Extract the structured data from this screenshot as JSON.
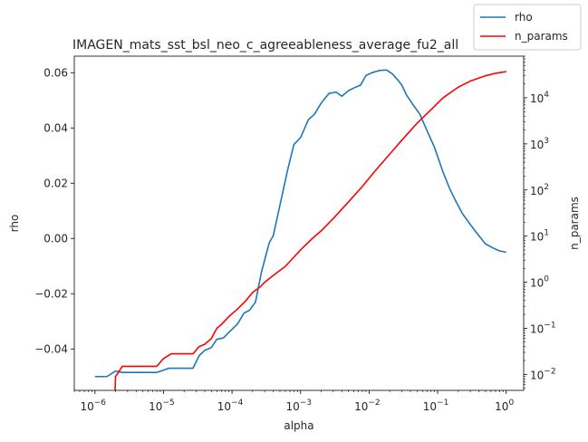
{
  "chart_data": {
    "type": "line",
    "title": "IMAGEN_mats_sst_bsl_neo_c_agreeableness_average_fu2_all",
    "xlabel": "alpha",
    "ylabel": "rho",
    "y2label": "n_params",
    "xscale": "log",
    "xlim": [
      5e-07,
      1.8
    ],
    "ylim": [
      -0.055,
      0.066
    ],
    "y2scale": "log",
    "y2lim": [
      0.0045,
      80000
    ],
    "x_ticks": [
      {
        "value": 1e-06,
        "base": "10",
        "exp": "−6"
      },
      {
        "value": 1e-05,
        "base": "10",
        "exp": "−5"
      },
      {
        "value": 0.0001,
        "base": "10",
        "exp": "−4"
      },
      {
        "value": 0.001,
        "base": "10",
        "exp": "−3"
      },
      {
        "value": 0.01,
        "base": "10",
        "exp": "−2"
      },
      {
        "value": 0.1,
        "base": "10",
        "exp": "−1"
      },
      {
        "value": 1,
        "base": "10",
        "exp": "0"
      }
    ],
    "y_ticks": [
      {
        "value": 0.06,
        "label": "0.06"
      },
      {
        "value": 0.04,
        "label": "0.04"
      },
      {
        "value": 0.02,
        "label": "0.02"
      },
      {
        "value": 0.0,
        "label": "0.00"
      },
      {
        "value": -0.02,
        "label": "−0.02"
      },
      {
        "value": -0.04,
        "label": "−0.04"
      }
    ],
    "y2_ticks": [
      {
        "value": 0.01,
        "base": "10",
        "exp": "−2"
      },
      {
        "value": 0.1,
        "base": "10",
        "exp": "−1"
      },
      {
        "value": 1,
        "base": "10",
        "exp": "0"
      },
      {
        "value": 10,
        "base": "10",
        "exp": "1"
      },
      {
        "value": 100,
        "base": "10",
        "exp": "2"
      },
      {
        "value": 1000,
        "base": "10",
        "exp": "3"
      },
      {
        "value": 10000,
        "base": "10",
        "exp": "4"
      }
    ],
    "legend": {
      "placement": "top-right"
    },
    "series": [
      {
        "name": "rho",
        "axis": "left",
        "color": "#1f77b4",
        "points": [
          [
            1e-06,
            -0.05
          ],
          [
            1.5e-06,
            -0.05
          ],
          [
            2e-06,
            -0.048
          ],
          [
            2.5e-06,
            -0.0485
          ],
          [
            3e-06,
            -0.0485
          ],
          [
            5e-06,
            -0.0485
          ],
          [
            8e-06,
            -0.0485
          ],
          [
            1.2e-05,
            -0.047
          ],
          [
            2e-05,
            -0.047
          ],
          [
            2.7e-05,
            -0.047
          ],
          [
            3.3e-05,
            -0.0425
          ],
          [
            4e-05,
            -0.0405
          ],
          [
            5e-05,
            -0.0395
          ],
          [
            6e-05,
            -0.0365
          ],
          [
            7.5e-05,
            -0.036
          ],
          [
            9e-05,
            -0.034
          ],
          [
            0.00012,
            -0.031
          ],
          [
            0.00015,
            -0.027
          ],
          [
            0.00018,
            -0.026
          ],
          [
            0.00022,
            -0.023
          ],
          [
            0.00027,
            -0.012
          ],
          [
            0.00035,
            -0.0015
          ],
          [
            0.0004,
            0.001
          ],
          [
            0.0005,
            0.012
          ],
          [
            0.00065,
            0.025
          ],
          [
            0.0008,
            0.034
          ],
          [
            0.001,
            0.0365
          ],
          [
            0.0013,
            0.043
          ],
          [
            0.0016,
            0.045
          ],
          [
            0.002,
            0.049
          ],
          [
            0.0026,
            0.0525
          ],
          [
            0.0033,
            0.053
          ],
          [
            0.004,
            0.0515
          ],
          [
            0.005,
            0.0535
          ],
          [
            0.006,
            0.0545
          ],
          [
            0.0075,
            0.0555
          ],
          [
            0.009,
            0.059
          ],
          [
            0.011,
            0.06
          ],
          [
            0.014,
            0.0608
          ],
          [
            0.018,
            0.061
          ],
          [
            0.022,
            0.0595
          ],
          [
            0.026,
            0.0575
          ],
          [
            0.03,
            0.0555
          ],
          [
            0.035,
            0.052
          ],
          [
            0.045,
            0.048
          ],
          [
            0.055,
            0.045
          ],
          [
            0.07,
            0.039
          ],
          [
            0.09,
            0.033
          ],
          [
            0.12,
            0.024
          ],
          [
            0.15,
            0.018
          ],
          [
            0.18,
            0.014
          ],
          [
            0.23,
            0.009
          ],
          [
            0.3,
            0.005
          ],
          [
            0.4,
            0.001
          ],
          [
            0.5,
            -0.002
          ],
          [
            0.65,
            -0.0035
          ],
          [
            0.8,
            -0.0045
          ],
          [
            1,
            -0.005
          ]
        ]
      },
      {
        "name": "n_params",
        "axis": "right",
        "color": "#ff0000",
        "points": [
          [
            1.95e-06,
            0.003
          ],
          [
            2e-06,
            0.009
          ],
          [
            2.2e-06,
            0.011
          ],
          [
            2.5e-06,
            0.015
          ],
          [
            3e-06,
            0.015
          ],
          [
            5e-06,
            0.015
          ],
          [
            8e-06,
            0.015
          ],
          [
            1e-05,
            0.022
          ],
          [
            1.3e-05,
            0.028
          ],
          [
            2e-05,
            0.028
          ],
          [
            2.7e-05,
            0.028
          ],
          [
            3.3e-05,
            0.04
          ],
          [
            4e-05,
            0.045
          ],
          [
            5e-05,
            0.06
          ],
          [
            6e-05,
            0.1
          ],
          [
            7e-05,
            0.12
          ],
          [
            9e-05,
            0.18
          ],
          [
            0.00012,
            0.26
          ],
          [
            0.00016,
            0.4
          ],
          [
            0.0002,
            0.6
          ],
          [
            0.00026,
            0.8
          ],
          [
            0.0003,
            1.0
          ],
          [
            0.0004,
            1.4
          ],
          [
            0.0006,
            2.2
          ],
          [
            0.0008,
            3.5
          ],
          [
            0.001,
            5
          ],
          [
            0.0015,
            9
          ],
          [
            0.002,
            13
          ],
          [
            0.003,
            24
          ],
          [
            0.005,
            55
          ],
          [
            0.008,
            120
          ],
          [
            0.012,
            250
          ],
          [
            0.02,
            600
          ],
          [
            0.03,
            1200
          ],
          [
            0.05,
            2800
          ],
          [
            0.08,
            5500
          ],
          [
            0.12,
            10000
          ],
          [
            0.2,
            17000
          ],
          [
            0.3,
            23000
          ],
          [
            0.5,
            30000
          ],
          [
            0.7,
            34000
          ],
          [
            1,
            37000
          ]
        ]
      }
    ]
  }
}
